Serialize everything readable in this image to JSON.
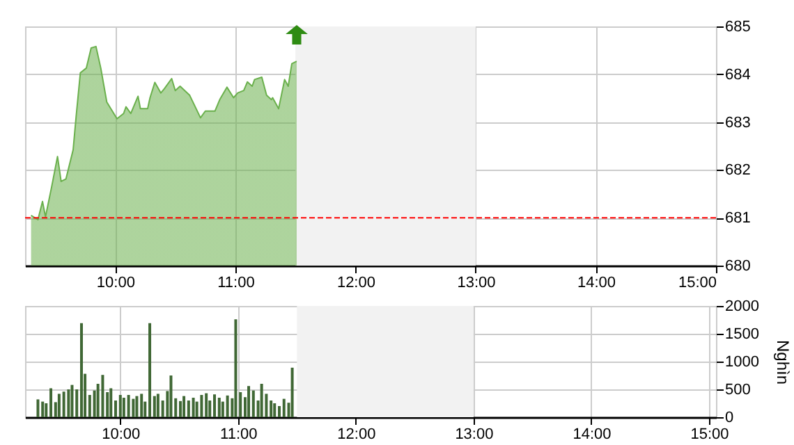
{
  "chart_data": [
    {
      "type": "area",
      "x": [
        9.3,
        9.357,
        9.395,
        9.42,
        9.473,
        9.52,
        9.55,
        9.59,
        9.65,
        9.674,
        9.71,
        9.76,
        9.8,
        9.84,
        9.88,
        9.93,
        10.015,
        10.07,
        10.09,
        10.13,
        10.19,
        10.21,
        10.27,
        10.29,
        10.33,
        10.38,
        10.41,
        10.47,
        10.5,
        10.54,
        10.62,
        10.71,
        10.75,
        10.83,
        10.87,
        10.93,
        10.985,
        11.02,
        11.07,
        11.1,
        11.14,
        11.16,
        11.22,
        11.26,
        11.3,
        11.31,
        11.36,
        11.41,
        11.44,
        11.47,
        11.51
      ],
      "series": [
        {
          "color": "#6ab04c",
          "values": [
            681.05,
            680.96,
            681.34,
            681.02,
            681.67,
            682.28,
            681.76,
            681.81,
            682.42,
            683.09,
            684.03,
            684.13,
            684.55,
            684.58,
            684.13,
            683.42,
            683.07,
            683.18,
            683.32,
            683.18,
            683.54,
            683.28,
            683.28,
            683.51,
            683.83,
            683.61,
            683.7,
            683.91,
            683.66,
            683.75,
            683.56,
            683.09,
            683.23,
            683.23,
            683.47,
            683.73,
            683.51,
            683.61,
            683.66,
            683.84,
            683.75,
            683.89,
            683.94,
            683.56,
            683.47,
            683.51,
            683.28,
            683.89,
            683.75,
            684.22,
            684.27
          ]
        }
      ],
      "xlim": [
        9.25,
        15
      ],
      "xticks": [
        {
          "value": 10,
          "label": "10:00"
        },
        {
          "value": 11,
          "label": "11:00"
        },
        {
          "value": 12,
          "label": "12:00"
        },
        {
          "value": 13,
          "label": "13:00"
        },
        {
          "value": 14,
          "label": "14:00"
        },
        {
          "value": 15,
          "label": "15:00"
        }
      ],
      "ylim": [
        680,
        685
      ],
      "yticks": [
        680,
        681,
        682,
        683,
        684,
        685
      ],
      "grid": true,
      "ref_lines": [
        {
          "axis": "y",
          "value": 681,
          "color": "#ff0000",
          "line_style": "dashed"
        }
      ],
      "bands": [
        {
          "axis": "x",
          "from": 11.5,
          "to": 13,
          "color": "#f2f2f2"
        }
      ]
    },
    {
      "type": "bar",
      "ylabel": "Nghìn",
      "series": [
        {
          "color": "#406835",
          "x": [
            9.3,
            9.34,
            9.37,
            9.41,
            9.45,
            9.48,
            9.52,
            9.56,
            9.59,
            9.63,
            9.67,
            9.7,
            9.74,
            9.78,
            9.81,
            9.85,
            9.89,
            9.92,
            9.96,
            10.0,
            10.03,
            10.07,
            10.11,
            10.14,
            10.18,
            10.21,
            10.25,
            10.29,
            10.32,
            10.36,
            10.4,
            10.43,
            10.47,
            10.51,
            10.54,
            10.58,
            10.62,
            10.65,
            10.69,
            10.73,
            10.76,
            10.8,
            10.84,
            10.87,
            10.91,
            10.95,
            10.98,
            11.02,
            11.06,
            11.09,
            11.13,
            11.17,
            11.2,
            11.24,
            11.28,
            11.31,
            11.35,
            11.39,
            11.43,
            11.46
          ],
          "values": [
            320,
            280,
            250,
            520,
            270,
            420,
            460,
            500,
            580,
            500,
            1690,
            780,
            400,
            480,
            600,
            760,
            450,
            520,
            300,
            400,
            350,
            400,
            330,
            380,
            420,
            280,
            1690,
            380,
            420,
            300,
            470,
            750,
            340,
            290,
            380,
            300,
            350,
            280,
            400,
            430,
            300,
            410,
            350,
            280,
            390,
            340,
            1760,
            450,
            360,
            560,
            480,
            300,
            600,
            420,
            300,
            250,
            200,
            330,
            260,
            890
          ]
        }
      ],
      "xlim": [
        9.25,
        15
      ],
      "xticks": [
        {
          "value": 10,
          "label": "10:00"
        },
        {
          "value": 11,
          "label": "11:00"
        },
        {
          "value": 12,
          "label": "12:00"
        },
        {
          "value": 13,
          "label": "13:00"
        },
        {
          "value": 14,
          "label": "14:00"
        },
        {
          "value": 15,
          "label": "15:00"
        }
      ],
      "ylim": [
        0,
        2000
      ],
      "yticks": [
        0,
        500,
        1000,
        1500,
        2000
      ],
      "grid": true,
      "bands": [
        {
          "axis": "x",
          "from": 11.5,
          "to": 13,
          "color": "#f2f2f2"
        }
      ]
    }
  ]
}
